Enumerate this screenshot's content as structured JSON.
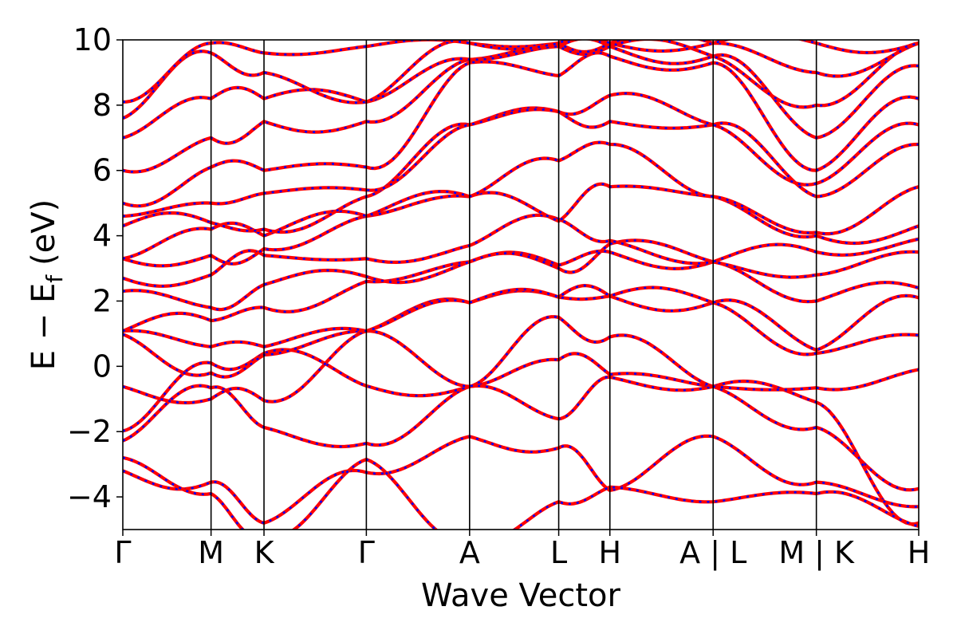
{
  "chart_data": {
    "type": "line",
    "xlabel": "Wave Vector",
    "ylabel": "E − E",
    "ylabel_subscript": "f",
    "ylabel_unit": "(eV)",
    "ylim": [
      -5,
      10
    ],
    "yticks": [
      -4,
      -2,
      0,
      2,
      4,
      6,
      8,
      10
    ],
    "ytick_labels": [
      "−4",
      "−2",
      "0",
      "2",
      "4",
      "6",
      "8",
      "10"
    ],
    "kpath_label_positions": [
      0,
      1,
      1.6,
      2.76,
      3.93,
      4.94,
      5.52,
      6.69,
      7.86,
      9.02
    ],
    "kpath_labels": [
      "Γ",
      "M",
      "K",
      "Γ",
      "A",
      "L",
      "H",
      "A | L",
      "M | K",
      "H"
    ],
    "xlim": [
      0,
      9.02
    ],
    "grid": false,
    "line_colors": {
      "solid": "#ff0000",
      "dashed": "#0000ff"
    },
    "band_y_at_kpoints": [
      [
        -2.28,
        -0.66,
        -1.87,
        -2.36,
        -0.62,
        0.2,
        -0.25,
        -0.62,
        -1.87,
        -3.75
      ],
      [
        -1.98,
        0.1,
        0.4,
        -0.6,
        -0.62,
        -1.61,
        -0.33,
        -0.62,
        -1.1,
        -4.8
      ],
      [
        -0.62,
        -1.0,
        -1.05,
        1.08,
        -0.62,
        1.5,
        0.9,
        -0.62,
        -0.66,
        -0.1
      ],
      [
        0.98,
        -0.2,
        0.35,
        1.08,
        1.95,
        2.12,
        2.15,
        1.95,
        0.4,
        0.95
      ],
      [
        1.08,
        0.6,
        0.6,
        1.08,
        1.95,
        2.12,
        2.15,
        1.95,
        0.5,
        2.1
      ],
      [
        1.08,
        1.4,
        1.8,
        2.6,
        3.2,
        3.1,
        3.5,
        3.2,
        2.0,
        2.4
      ],
      [
        2.3,
        1.8,
        2.5,
        2.75,
        3.2,
        3.0,
        3.75,
        3.2,
        2.8,
        3.5
      ],
      [
        2.7,
        2.8,
        3.4,
        3.3,
        3.7,
        4.5,
        3.85,
        3.2,
        3.5,
        3.9
      ],
      [
        3.3,
        3.4,
        3.6,
        4.6,
        5.2,
        4.45,
        5.5,
        5.2,
        4.0,
        4.3
      ],
      [
        3.3,
        4.2,
        4.0,
        4.6,
        5.2,
        6.3,
        6.8,
        5.2,
        4.1,
        5.5
      ],
      [
        4.3,
        4.4,
        4.2,
        5.2,
        7.4,
        7.8,
        7.5,
        7.4,
        5.2,
        6.8
      ],
      [
        4.6,
        5.0,
        5.3,
        5.4,
        7.4,
        7.8,
        8.3,
        7.4,
        5.6,
        7.4
      ],
      [
        5.0,
        6.1,
        6.0,
        6.1,
        9.3,
        8.9,
        9.5,
        9.3,
        6.0,
        8.2
      ],
      [
        6.0,
        7.0,
        7.5,
        7.5,
        9.4,
        9.8,
        9.8,
        9.5,
        7.0,
        9.2
      ],
      [
        7.0,
        8.2,
        8.2,
        8.1,
        9.4,
        9.8,
        9.8,
        9.5,
        8.0,
        9.9
      ],
      [
        7.6,
        9.6,
        9.0,
        8.1,
        9.9,
        9.9,
        9.9,
        9.9,
        9.0,
        9.9
      ],
      [
        8.1,
        9.9,
        9.6,
        9.8,
        9.9,
        9.9,
        9.9,
        9.9,
        9.9,
        9.9
      ],
      [
        -3.2,
        -3.55,
        -4.8,
        -3.25,
        -2.15,
        -2.5,
        -3.8,
        -2.15,
        -3.55,
        -4.3
      ],
      [
        -2.8,
        -3.9,
        -5.2,
        -2.85,
        -5.3,
        -4.15,
        -3.7,
        -4.15,
        -3.9,
        -4.9
      ]
    ]
  }
}
